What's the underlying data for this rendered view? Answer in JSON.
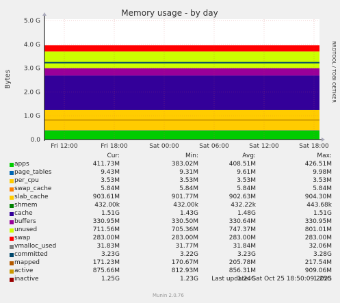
{
  "chart_data": {
    "type": "area",
    "title": "Memory usage - by day",
    "ylabel": "Bytes",
    "watermark": "RRDTOOL / TOBI OETIKER",
    "ylim": [
      0,
      5.0
    ],
    "y_ticks": [
      "0.0",
      "1.0 G",
      "2.0 G",
      "3.0 G",
      "4.0 G",
      "5.0 G"
    ],
    "x_ticks": [
      "Fri 12:00",
      "Fri 18:00",
      "Sat 00:00",
      "Sat 06:00",
      "Sat 12:00",
      "Sat 18:00"
    ],
    "stack_order": [
      "apps",
      "page_tables",
      "per_cpu",
      "swap_cache",
      "slab_cache",
      "shmem",
      "cache",
      "buffers",
      "unused",
      "swap"
    ],
    "bands_gb": {
      "apps": 0.38,
      "page_tables": 0.01,
      "per_cpu": 0.003,
      "swap_cache": 0.005,
      "slab_cache": 0.84,
      "shmem": 0.0004,
      "cache": 1.45,
      "buffers": 0.31,
      "unused": 0.7,
      "swap": 0.26
    },
    "line_series": [
      {
        "name": "committed",
        "value_gb": 3.23,
        "color": "#00476B"
      },
      {
        "name": "active",
        "value_gb": 0.82,
        "color": "#CC9900"
      }
    ]
  },
  "legend": {
    "headers": {
      "cur": "Cur:",
      "min": "Min:",
      "avg": "Avg:",
      "max": "Max:"
    },
    "rows": [
      {
        "name": "apps",
        "color": "#00CC00",
        "cur": "411.73M",
        "min": "383.02M",
        "avg": "408.51M",
        "max": "426.51M"
      },
      {
        "name": "page_tables",
        "color": "#0066B3",
        "cur": "9.43M",
        "min": "9.31M",
        "avg": "9.61M",
        "max": "9.98M"
      },
      {
        "name": "per_cpu",
        "color": "#FFCC00",
        "cur": "3.53M",
        "min": "3.53M",
        "avg": "3.53M",
        "max": "3.53M"
      },
      {
        "name": "swap_cache",
        "color": "#FF8000",
        "cur": "5.84M",
        "min": "5.84M",
        "avg": "5.84M",
        "max": "5.84M"
      },
      {
        "name": "slab_cache",
        "color": "#FFCC00",
        "cur": "903.61M",
        "min": "901.77M",
        "avg": "902.63M",
        "max": "904.30M"
      },
      {
        "name": "shmem",
        "color": "#008000",
        "cur": "432.00k",
        "min": "432.00k",
        "avg": "432.22k",
        "max": "443.68k"
      },
      {
        "name": "cache",
        "color": "#330099",
        "cur": "1.51G",
        "min": "1.43G",
        "avg": "1.48G",
        "max": "1.51G"
      },
      {
        "name": "buffers",
        "color": "#990099",
        "cur": "330.95M",
        "min": "330.50M",
        "avg": "330.64M",
        "max": "330.95M"
      },
      {
        "name": "unused",
        "color": "#CCFF00",
        "cur": "711.56M",
        "min": "705.36M",
        "avg": "747.37M",
        "max": "801.01M"
      },
      {
        "name": "swap",
        "color": "#FF0000",
        "cur": "283.00M",
        "min": "283.00M",
        "avg": "283.00M",
        "max": "283.00M"
      },
      {
        "name": "vmalloc_used",
        "color": "#808080",
        "cur": "31.83M",
        "min": "31.77M",
        "avg": "31.84M",
        "max": "32.06M"
      },
      {
        "name": "committed",
        "color": "#00476B",
        "cur": "3.23G",
        "min": "3.22G",
        "avg": "3.23G",
        "max": "3.28G"
      },
      {
        "name": "mapped",
        "color": "#B35A00",
        "cur": "171.23M",
        "min": "170.67M",
        "avg": "205.78M",
        "max": "217.54M"
      },
      {
        "name": "active",
        "color": "#CC9900",
        "cur": "875.66M",
        "min": "812.93M",
        "avg": "856.31M",
        "max": "909.06M"
      },
      {
        "name": "inactive",
        "color": "#990000",
        "cur": "1.25G",
        "min": "1.23G",
        "avg": "1.24G",
        "max": "1.25G"
      }
    ]
  },
  "footer": {
    "last_update": "Last update: Sat Oct 25 18:50:09 2025",
    "version": "Munin 2.0.76"
  }
}
